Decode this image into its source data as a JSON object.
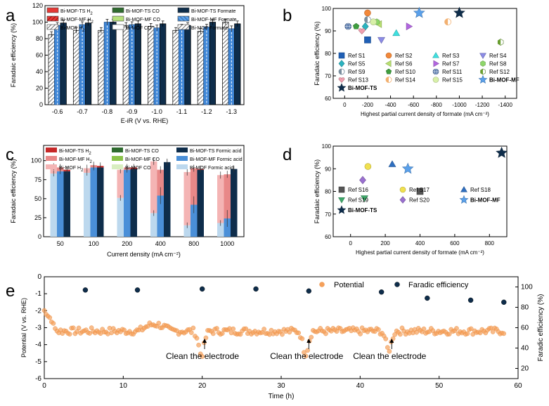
{
  "chart_data": [
    {
      "panel": "a",
      "type": "bar",
      "xlabel": "E-iR (V vs. RHE)",
      "ylabel": "Faradaic efficiency (%)",
      "ylim": [
        0,
        120
      ],
      "yticks": [
        "0",
        "20",
        "40",
        "60",
        "80",
        "100",
        "120"
      ],
      "categories": [
        "-0.6",
        "-0.7",
        "-0.8",
        "-0.9",
        "-1.0",
        "-1.1",
        "-1.2",
        "-1.3"
      ],
      "legend": [
        "Bi-MOF-TS H2",
        "Bi-MOF-TS CO",
        "Bi-MOF-TS Formate",
        "Bi-MOF-MF H2",
        "Bi-MOF-MF CO",
        "Bi-MOF-MF Formate",
        "Bi-MOF H2",
        "Bi-MOF CO",
        "Bi-MOF Formate"
      ],
      "series": [
        {
          "name": "Bi-MOF",
          "total": [
            85,
            90,
            90,
            96,
            95,
            90,
            89,
            100
          ],
          "h2": [
            78,
            5,
            4,
            3,
            3,
            3,
            60,
            55
          ]
        },
        {
          "name": "Bi-MOF-MF",
          "total": [
            96,
            97,
            100,
            97,
            93,
            94,
            94,
            92
          ],
          "h2": [
            1,
            1,
            1,
            1,
            1,
            2,
            3,
            3
          ]
        },
        {
          "name": "Bi-MOF-TS",
          "total": [
            99,
            99,
            100,
            98,
            98,
            96,
            100,
            98
          ],
          "h2": [
            0,
            0,
            0,
            0,
            0,
            0,
            0,
            0
          ]
        }
      ],
      "colors": {
        "ts": "#0e2d4b",
        "mf": "#3f86d6",
        "bimof": "#6b6b6b"
      }
    },
    {
      "panel": "b",
      "type": "scatter",
      "xlabel": "Highest partial current density of formate (mA cm⁻²)",
      "ylabel": "Faradaic efficiency (%)",
      "xlim": [
        100,
        -1500
      ],
      "ylim": [
        60,
        100
      ],
      "xticks": [
        "0",
        "-200",
        "-400",
        "-600",
        "-800",
        "-1000",
        "-1200",
        "-1400"
      ],
      "yticks": [
        "60",
        "70",
        "80",
        "90",
        "100"
      ],
      "points": [
        {
          "name": "Ref S1",
          "x": -200,
          "y": 86,
          "shape": "square",
          "color": "#1f5fb5"
        },
        {
          "name": "Ref S2",
          "x": -200,
          "y": 98,
          "shape": "circle",
          "color": "#f2883a"
        },
        {
          "name": "Ref S3",
          "x": -450,
          "y": 89,
          "shape": "triangle",
          "color": "#3fe0e0"
        },
        {
          "name": "Ref S4",
          "x": -320,
          "y": 86,
          "shape": "triangle-down",
          "color": "#8c8ce6"
        },
        {
          "name": "Ref S5",
          "x": -180,
          "y": 92,
          "shape": "diamond",
          "color": "#2bb3c0"
        },
        {
          "name": "Ref S6",
          "x": -300,
          "y": 93,
          "shape": "triangle-left",
          "color": "#b8e070"
        },
        {
          "name": "Ref S7",
          "x": -560,
          "y": 92,
          "shape": "triangle-right",
          "color": "#b266e0"
        },
        {
          "name": "Ref S8",
          "x": -280,
          "y": 94,
          "shape": "hexagon",
          "color": "#8ed66a"
        },
        {
          "name": "Ref S9",
          "x": -200,
          "y": 95,
          "shape": "half-circle",
          "color": "#7a8e9e"
        },
        {
          "name": "Ref S10",
          "x": -100,
          "y": 92,
          "shape": "pentagon",
          "color": "#3f9e3f"
        },
        {
          "name": "Ref S11",
          "x": -30,
          "y": 92,
          "shape": "globe",
          "color": "#5577aa"
        },
        {
          "name": "Ref S12",
          "x": -1360,
          "y": 85,
          "shape": "half-hexagon",
          "color": "#6aa030"
        },
        {
          "name": "Ref S13",
          "x": -150,
          "y": 90,
          "shape": "heart",
          "color": "#f0a0b0"
        },
        {
          "name": "Ref S14",
          "x": -900,
          "y": 94,
          "shape": "half-circle",
          "color": "#f2b070"
        },
        {
          "name": "Ref S15",
          "x": -250,
          "y": 94,
          "shape": "circle",
          "color": "#d8f0a8"
        },
        {
          "name": "Bi-MOF-MF",
          "x": -650,
          "y": 98,
          "shape": "star",
          "color": "#5aa0ea"
        },
        {
          "name": "Bi-MOF-TS",
          "x": -1000,
          "y": 98,
          "shape": "star",
          "color": "#0e2d4b"
        }
      ]
    },
    {
      "panel": "c",
      "type": "bar",
      "xlabel": "Current density (mA cm⁻²)",
      "ylabel": "Faradaic efficiency (%)",
      "ylim": [
        0,
        120
      ],
      "yticks": [
        "0",
        "25",
        "50",
        "75",
        "100"
      ],
      "categories": [
        "50",
        "100",
        "200",
        "400",
        "800",
        "1000"
      ],
      "legend": [
        "Bi-MOF-TS H2",
        "Bi-MOF-TS CO",
        "Bi-MOF-TS Formic acid",
        "Bi-MOF-MF H2",
        "Bi-MOF-MF CO",
        "Bi-MOF-MF Formic acid",
        "Bi-MOF H2",
        "Bi-MOF CO",
        "Bi-MOF Formic acid"
      ],
      "series": [
        {
          "name": "Bi-MOF",
          "total": [
            92,
            90,
            88,
            99,
            85,
            81
          ],
          "formic": [
            83,
            84,
            51,
            31,
            15,
            18
          ]
        },
        {
          "name": "Bi-MOF-MF",
          "total": [
            91,
            94,
            91,
            88,
            90,
            82
          ],
          "formic": [
            86,
            91,
            88,
            54,
            42,
            24
          ]
        },
        {
          "name": "Bi-MOF-TS",
          "total": [
            88,
            93,
            91,
            98,
            89,
            89
          ],
          "formic": [
            86,
            91,
            89,
            98,
            88,
            89
          ]
        }
      ]
    },
    {
      "panel": "d",
      "type": "scatter",
      "xlabel": "Highest partial current density of formate (mA cm⁻²)",
      "ylabel": "Faradaic efficiency (%)",
      "xlim": [
        -100,
        900
      ],
      "ylim": [
        60,
        100
      ],
      "xticks": [
        "0",
        "200",
        "400",
        "600",
        "800"
      ],
      "yticks": [
        "60",
        "70",
        "80",
        "90",
        "100"
      ],
      "points": [
        {
          "name": "Ref S16",
          "x": 400,
          "y": 80,
          "shape": "square",
          "color": "#555555"
        },
        {
          "name": "Ref S17",
          "x": 100,
          "y": 91,
          "shape": "circle",
          "color": "#f0e050"
        },
        {
          "name": "Ref S18",
          "x": 240,
          "y": 92,
          "shape": "triangle",
          "color": "#2f6fc0"
        },
        {
          "name": "Ref S19",
          "x": 80,
          "y": 77,
          "shape": "triangle-down",
          "color": "#3fa86a"
        },
        {
          "name": "Ref S20",
          "x": 70,
          "y": 85,
          "shape": "diamond",
          "color": "#9a70d0"
        },
        {
          "name": "Bi-MOF-MF",
          "x": 330,
          "y": 90,
          "shape": "star",
          "color": "#5aa0ea"
        },
        {
          "name": "Bi-MOF-TS",
          "x": 870,
          "y": 97,
          "shape": "star",
          "color": "#0e2d4b"
        }
      ]
    },
    {
      "panel": "e",
      "type": "scatter",
      "xlabel": "Time (h)",
      "ylabel": "Potential (V vs. RHE)",
      "y2label": "Faradic efficiency (%)",
      "xlim": [
        0,
        60
      ],
      "ylim": [
        -6,
        0
      ],
      "y2lim": [
        10,
        110
      ],
      "xticks": [
        "0",
        "10",
        "20",
        "30",
        "40",
        "50",
        "60"
      ],
      "yticks": [
        "-6",
        "-5",
        "-4",
        "-3",
        "-2",
        "-1",
        "0"
      ],
      "y2ticks": [
        "20",
        "40",
        "60",
        "80",
        "100"
      ],
      "legend": [
        "Potential",
        "Faradic efficiency"
      ],
      "annotations": [
        "Clean the electrode",
        "Clean the electrode",
        "Clean the electrode"
      ],
      "annotation_x": [
        20.3,
        33.5,
        44.0
      ],
      "potential_baseline": -3.2,
      "potential_dips": [
        {
          "t": 20.3,
          "v": -4.6
        },
        {
          "t": 33.5,
          "v": -4.5
        },
        {
          "t": 44.0,
          "v": -4.3
        }
      ],
      "faradaic": [
        {
          "t": 5.2,
          "v": 97
        },
        {
          "t": 11.8,
          "v": 97
        },
        {
          "t": 20.0,
          "v": 98
        },
        {
          "t": 26.8,
          "v": 98
        },
        {
          "t": 33.5,
          "v": 96
        },
        {
          "t": 42.7,
          "v": 95
        },
        {
          "t": 48.5,
          "v": 89
        },
        {
          "t": 54.0,
          "v": 87
        },
        {
          "t": 58.2,
          "v": 85
        }
      ],
      "colors": {
        "potential": "#f5a05a",
        "faradaic": "#0e2d4b"
      }
    }
  ],
  "panels": {
    "a": "a",
    "b": "b",
    "c": "c",
    "d": "d",
    "e": "e"
  }
}
